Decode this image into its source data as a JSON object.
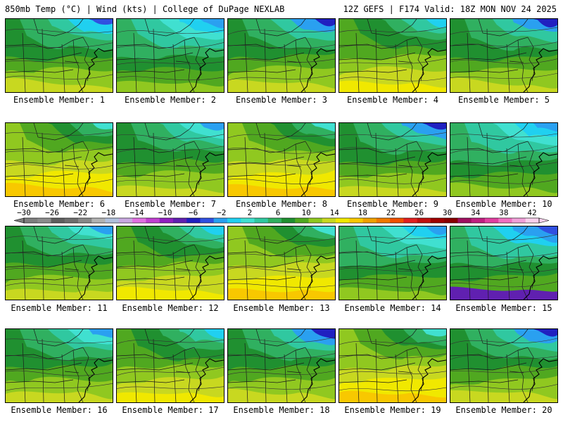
{
  "header": {
    "left": "850mb Temp (°C) | Wind (kts) | College of DuPage NEXLAB",
    "right": "12Z GEFS | F174 Valid: 18Z MON NOV 24 2025"
  },
  "members": [
    {
      "label": "Ensemble Member: 1",
      "style": "warm-west"
    },
    {
      "label": "Ensemble Member: 2",
      "style": "cool-east"
    },
    {
      "label": "Ensemble Member: 3",
      "style": "cool-ne"
    },
    {
      "label": "Ensemble Member: 4",
      "style": "warm"
    },
    {
      "label": "Ensemble Member: 5",
      "style": "cool-ne"
    },
    {
      "label": "Ensemble Member: 6",
      "style": "warm-south"
    },
    {
      "label": "Ensemble Member: 7",
      "style": "cool-north"
    },
    {
      "label": "Ensemble Member: 8",
      "style": "warm-south"
    },
    {
      "label": "Ensemble Member: 9",
      "style": "cool-ne"
    },
    {
      "label": "Ensemble Member: 10",
      "style": "cool-east"
    },
    {
      "label": "Ensemble Member: 11",
      "style": "cool-north"
    },
    {
      "label": "Ensemble Member: 12",
      "style": "warm"
    },
    {
      "label": "Ensemble Member: 13",
      "style": "warm-south"
    },
    {
      "label": "Ensemble Member: 14",
      "style": "cool-east"
    },
    {
      "label": "Ensemble Member: 15",
      "style": "cold"
    },
    {
      "label": "Ensemble Member: 16",
      "style": "cool-north"
    },
    {
      "label": "Ensemble Member: 17",
      "style": "warm"
    },
    {
      "label": "Ensemble Member: 18",
      "style": "cool-ne"
    },
    {
      "label": "Ensemble Member: 19",
      "style": "warm-south"
    },
    {
      "label": "Ensemble Member: 20",
      "style": "cool-ne"
    }
  ],
  "colorbar": {
    "labels": [
      "−30",
      "−26",
      "−22",
      "−18",
      "−14",
      "−10",
      "−6",
      "−2",
      "2",
      "6",
      "10",
      "14",
      "18",
      "22",
      "26",
      "30",
      "34",
      "38",
      "42"
    ],
    "colors": [
      "#7f7f7f",
      "#8c8c8c",
      "#5f5f5f",
      "#6e6e6e",
      "#888888",
      "#b2b2b2",
      "#b0c0dc",
      "#c9a8e0",
      "#e070e0",
      "#c040d0",
      "#9020c0",
      "#6020b0",
      "#2020c0",
      "#3050e0",
      "#2aa0f0",
      "#20d0f0",
      "#40e0d0",
      "#30c8a0",
      "#30b060",
      "#209030",
      "#50a820",
      "#90c820",
      "#c8d820",
      "#f0e800",
      "#f8c800",
      "#f0a000",
      "#f07800",
      "#f05000",
      "#e02020",
      "#c01010",
      "#a00000",
      "#880000",
      "#a01060",
      "#c02080",
      "#e040a0",
      "#f070c0",
      "#f0a0d8",
      "#f8d0ec"
    ]
  }
}
